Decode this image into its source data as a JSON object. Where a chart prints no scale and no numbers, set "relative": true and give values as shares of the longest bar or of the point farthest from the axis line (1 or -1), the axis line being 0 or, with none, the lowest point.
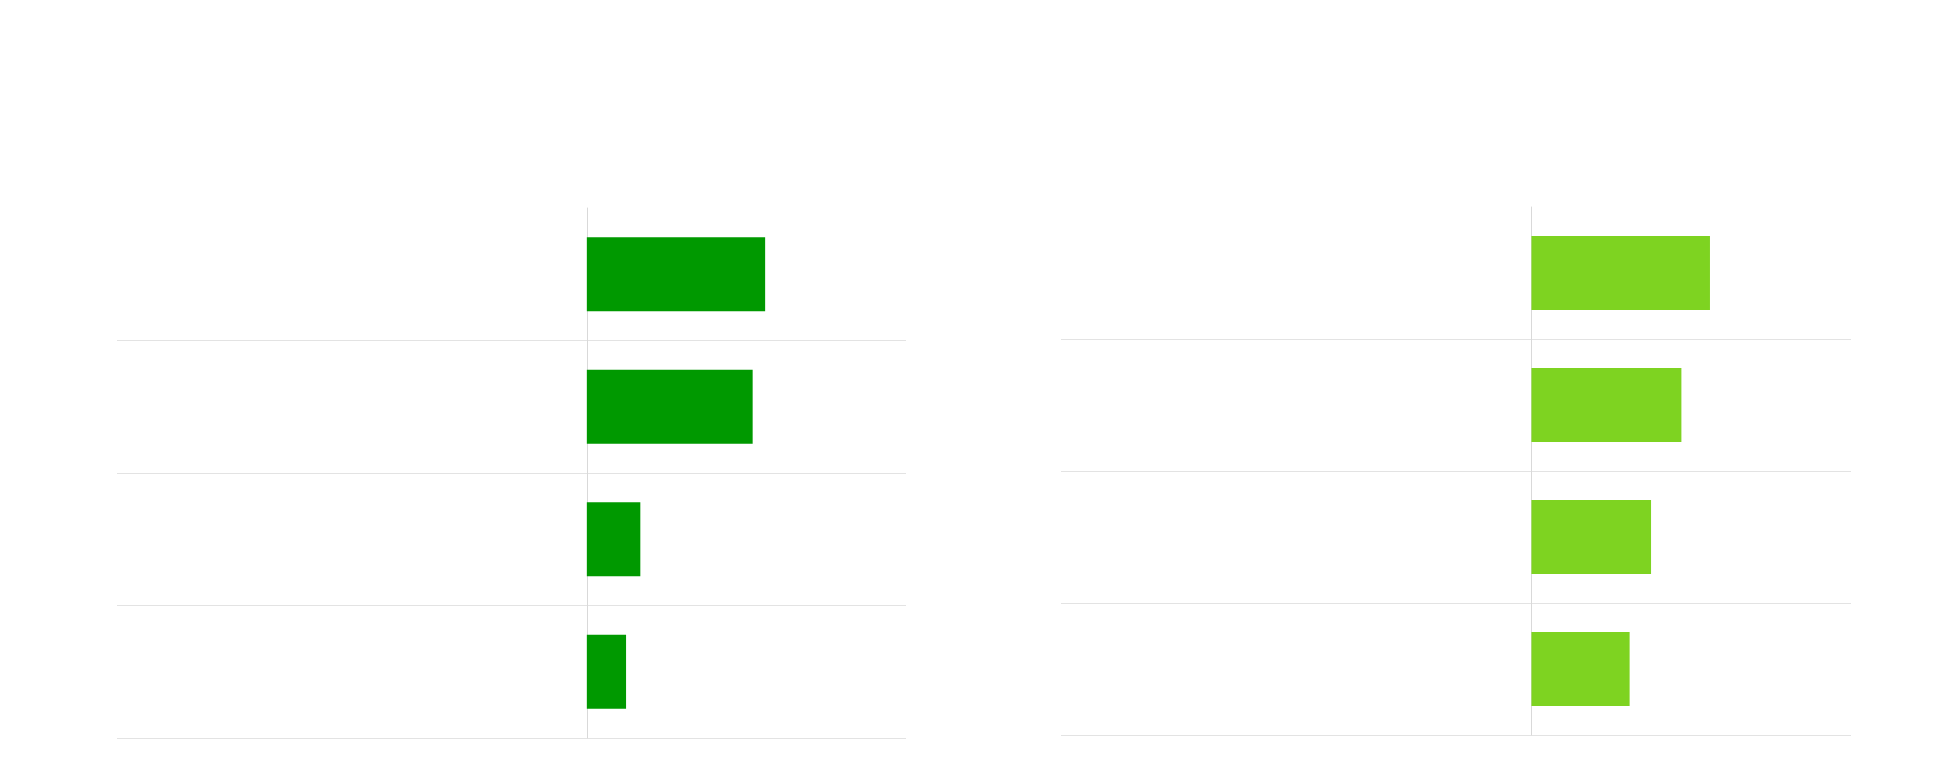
{
  "chart_data": [
    {
      "type": "bar",
      "orientation": "horizontal",
      "relative": true,
      "categories": [
        null,
        null,
        null,
        null
      ],
      "values": [
        1,
        0.93,
        0.3,
        0.22
      ],
      "color": "#009900",
      "grid": "y"
    },
    {
      "type": "bar",
      "orientation": "horizontal",
      "relative": true,
      "categories": [
        null,
        null,
        null,
        null
      ],
      "values": [
        1,
        0.84,
        0.67,
        0.55
      ],
      "color": "#7ed321",
      "grid": "y"
    }
  ]
}
